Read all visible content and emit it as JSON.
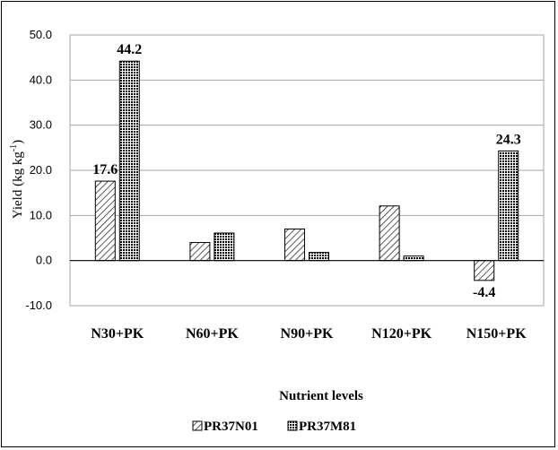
{
  "chart_data": {
    "type": "bar",
    "categories": [
      "N30+PK",
      "N60+PK",
      "N90+PK",
      "N120+PK",
      "N150+PK"
    ],
    "series": [
      {
        "name": "PR37N01",
        "values": [
          17.6,
          4.0,
          7.0,
          12.1,
          -4.4
        ],
        "pattern": "diagonal-hatch-light"
      },
      {
        "name": "PR37M81",
        "values": [
          44.2,
          6.1,
          1.8,
          1.0,
          24.3
        ],
        "pattern": "dense-crosshatch"
      }
    ],
    "data_labels": [
      {
        "series": 0,
        "index": 0,
        "text": "17.6"
      },
      {
        "series": 1,
        "index": 0,
        "text": "44.2"
      },
      {
        "series": 0,
        "index": 4,
        "text": "-4.4"
      },
      {
        "series": 1,
        "index": 4,
        "text": "24.3"
      }
    ],
    "ylabel_main": "Yield (kg kg",
    "ylabel_sup": "-1",
    "ylabel_end": ")",
    "xlabel": "Nutrient levels",
    "ylim": [
      -10,
      50
    ],
    "yticks": [
      "50.0",
      "40.0",
      "30.0",
      "20.0",
      "10.0",
      "0.0",
      "-10.0"
    ],
    "ytick_values": [
      50,
      40,
      30,
      20,
      10,
      0,
      -10
    ],
    "grid": true,
    "legend_position": "bottom",
    "colors": {
      "bar_stroke": "#000000",
      "grid": "#a6a6a6",
      "axis": "#000000",
      "pattern_fg": "#000000"
    }
  }
}
